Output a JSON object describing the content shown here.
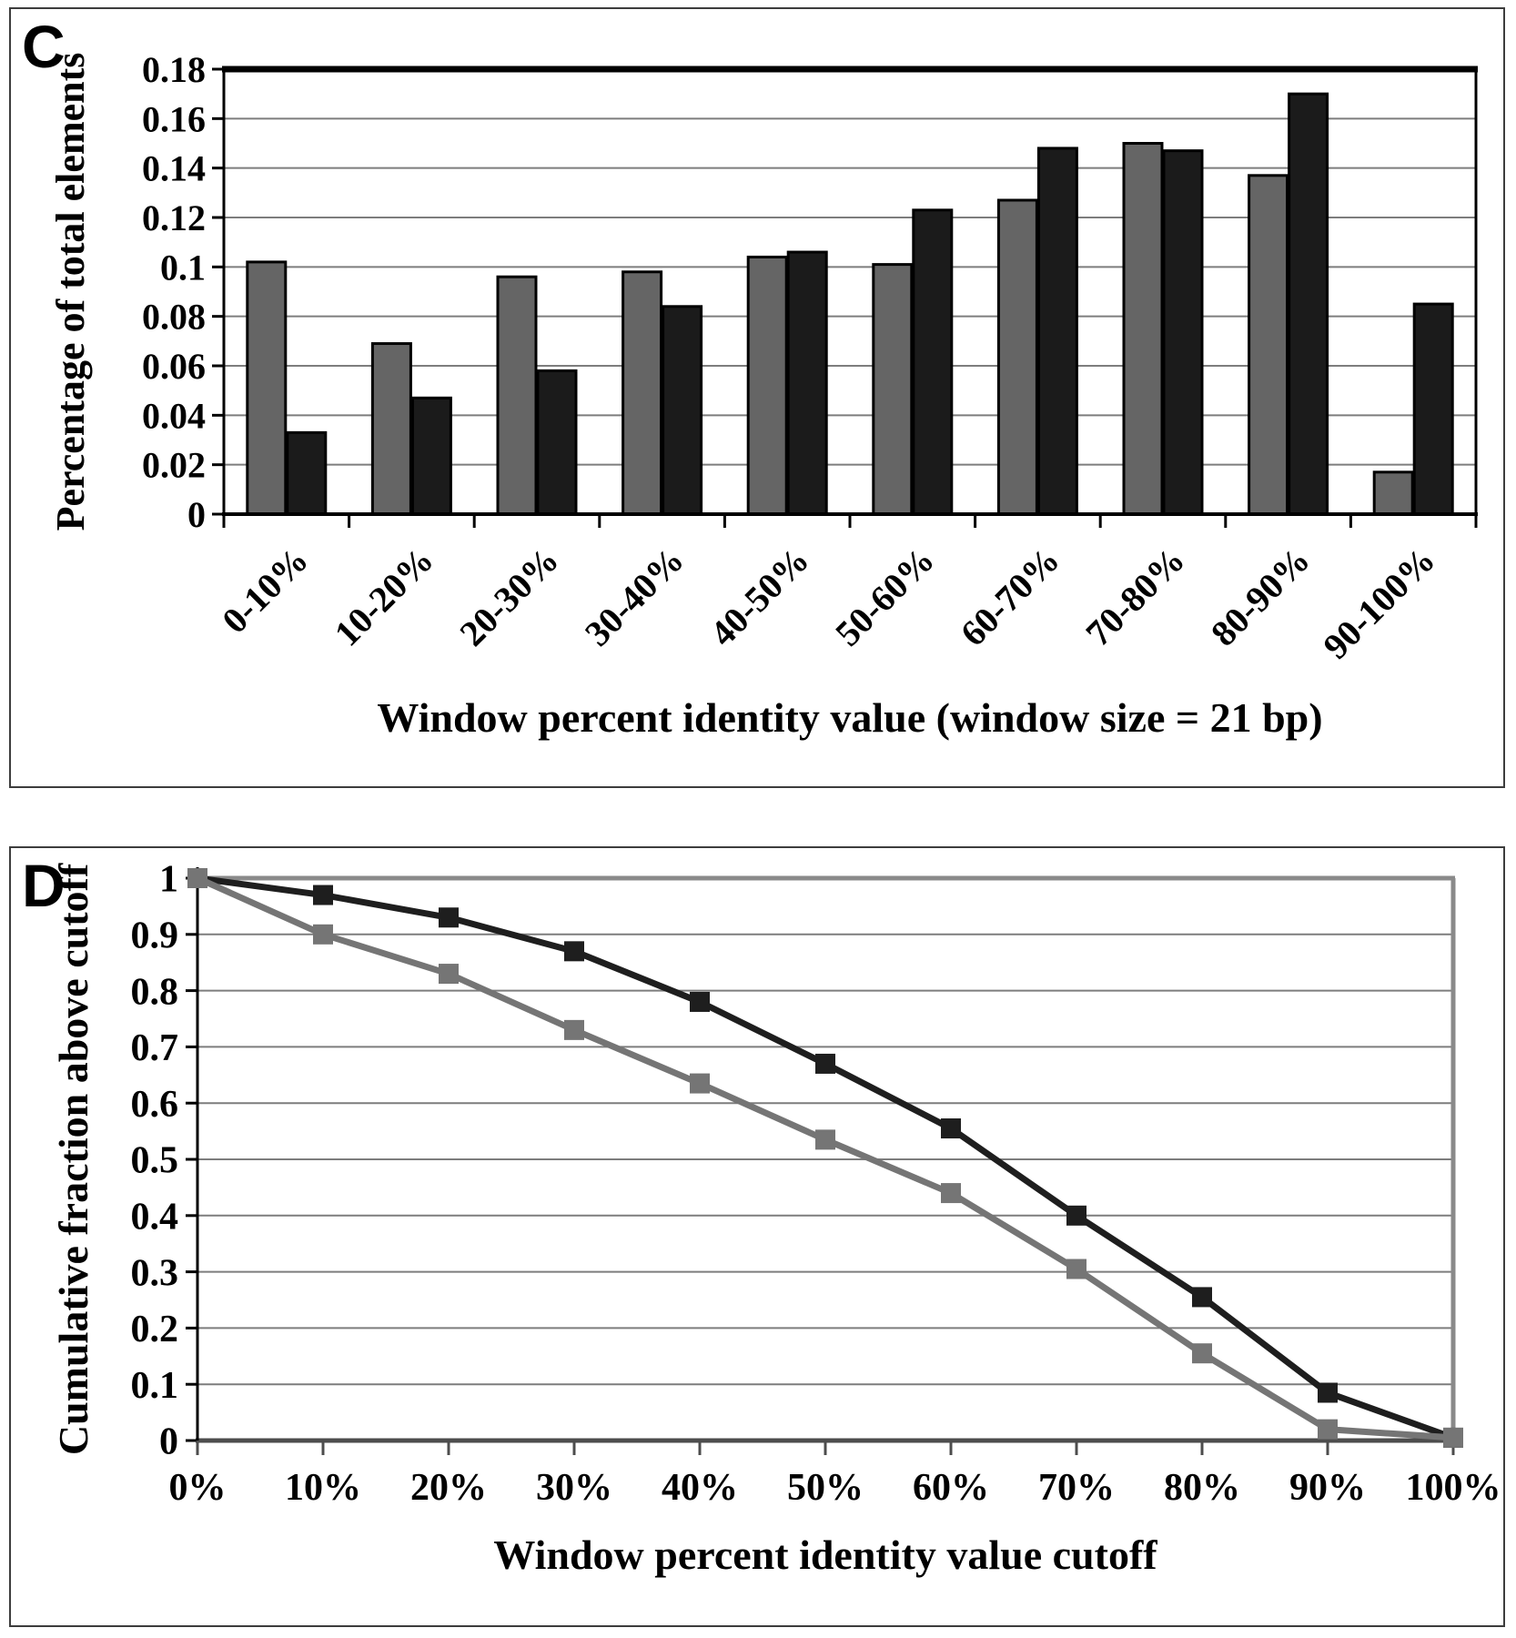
{
  "panels": {
    "c_label": "C",
    "d_label": "D"
  },
  "chart_data": [
    {
      "type": "bar",
      "panel_label": "C",
      "title": "",
      "xlabel": "Window percent identity value (window size = 21 bp)",
      "ylabel": "Percentage of total elements",
      "categories": [
        "0-10%",
        "10-20%",
        "20-30%",
        "30-40%",
        "40-50%",
        "50-60%",
        "60-70%",
        "70-80%",
        "80-90%",
        "90-100%"
      ],
      "series": [
        {
          "name": "gray-series",
          "color": "#656565",
          "values": [
            0.102,
            0.069,
            0.096,
            0.098,
            0.104,
            0.101,
            0.127,
            0.15,
            0.137,
            0.017
          ]
        },
        {
          "name": "black-series",
          "color": "#1b1b1b",
          "values": [
            0.033,
            0.047,
            0.058,
            0.084,
            0.106,
            0.123,
            0.148,
            0.147,
            0.17,
            0.085
          ]
        }
      ],
      "ylim": [
        0,
        0.18
      ],
      "ytick_labels": [
        "0.18",
        "0.16",
        "0.14",
        "0.12",
        "0.1",
        "0.08",
        "0.06",
        "0.04",
        "0.02",
        "0"
      ],
      "grid": "horizontal",
      "legend": "none",
      "bar_outline_color": "#000000",
      "gridline_color": "#7d7d7d"
    },
    {
      "type": "line",
      "panel_label": "D",
      "title": "",
      "xlabel": "Window percent identity value cutoff",
      "ylabel": "Cumulative fraction above cutoff",
      "x_labels": [
        "0%",
        "10%",
        "20%",
        "30%",
        "40%",
        "50%",
        "60%",
        "70%",
        "80%",
        "90%",
        "100%"
      ],
      "series": [
        {
          "name": "black-series",
          "color": "#1e1e1e",
          "marker": "square",
          "values": [
            1.0,
            0.97,
            0.93,
            0.87,
            0.78,
            0.67,
            0.555,
            0.4,
            0.255,
            0.085,
            0.005
          ]
        },
        {
          "name": "gray-series",
          "color": "#757575",
          "marker": "square",
          "values": [
            1.0,
            0.9,
            0.83,
            0.73,
            0.635,
            0.535,
            0.44,
            0.305,
            0.155,
            0.02,
            0.005
          ]
        }
      ],
      "ylim": [
        0,
        1
      ],
      "ytick_labels": [
        "1",
        "0.9",
        "0.8",
        "0.7",
        "0.6",
        "0.5",
        "0.4",
        "0.3",
        "0.2",
        "0.1",
        "0"
      ],
      "grid": "horizontal",
      "legend": "none",
      "plot_border_color": "#8a8a8a",
      "bottom_axis_color": "#4d4d4d",
      "gridline_color": "#7d7d7d"
    }
  ]
}
